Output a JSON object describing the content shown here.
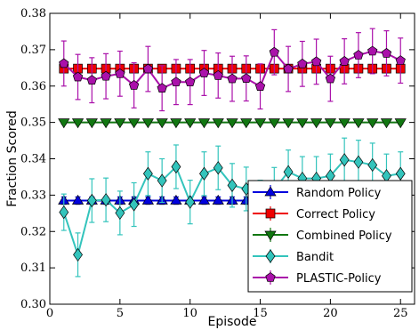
{
  "chart_data": {
    "type": "line",
    "xlabel": "Episode",
    "ylabel": "Fraction Scored",
    "xlim": [
      0,
      26
    ],
    "ylim": [
      0.3,
      0.38
    ],
    "xticks": [
      0,
      5,
      10,
      15,
      20,
      25
    ],
    "yticks": [
      0.3,
      0.31,
      0.32,
      0.33,
      0.34,
      0.35,
      0.36,
      0.37,
      0.38
    ],
    "ytick_labels": [
      "0.30",
      "0.31",
      "0.32",
      "0.33",
      "0.34",
      "0.35",
      "0.36",
      "0.37",
      "0.38"
    ],
    "grid": false,
    "legend_position": "lower-right",
    "x": [
      1,
      2,
      3,
      4,
      5,
      6,
      7,
      8,
      9,
      10,
      11,
      12,
      13,
      14,
      15,
      16,
      17,
      18,
      19,
      20,
      21,
      22,
      23,
      24,
      25
    ],
    "series": [
      {
        "name": "Random Policy",
        "color": "#0000dd",
        "marker": "triangle-up",
        "values": [
          0.3285,
          0.3285,
          0.3285,
          0.3285,
          0.3285,
          0.3285,
          0.3285,
          0.3285,
          0.3285,
          0.3285,
          0.3285,
          0.3285,
          0.3285,
          0.3285,
          0.3285,
          0.3285,
          0.3285,
          0.3285,
          0.3285,
          0.3285,
          0.3285,
          0.3285,
          0.3285,
          0.3285,
          0.3285
        ],
        "error": [
          0.001,
          0.001,
          0.001,
          0.001,
          0.001,
          0.001,
          0.001,
          0.001,
          0.001,
          0.001,
          0.001,
          0.001,
          0.001,
          0.001,
          0.001,
          0.001,
          0.001,
          0.001,
          0.001,
          0.001,
          0.001,
          0.001,
          0.001,
          0.001,
          0.001
        ]
      },
      {
        "name": "Correct Policy",
        "color": "#ee0000",
        "marker": "square",
        "values": [
          0.3648,
          0.3648,
          0.3648,
          0.3648,
          0.3648,
          0.3648,
          0.3648,
          0.3648,
          0.3648,
          0.3648,
          0.3648,
          0.3648,
          0.3648,
          0.3648,
          0.3648,
          0.3648,
          0.3648,
          0.3648,
          0.3648,
          0.3648,
          0.3648,
          0.3648,
          0.3648,
          0.3648,
          0.3648
        ],
        "error": [
          0.001,
          0.001,
          0.001,
          0.001,
          0.001,
          0.001,
          0.001,
          0.001,
          0.001,
          0.001,
          0.001,
          0.001,
          0.001,
          0.001,
          0.001,
          0.001,
          0.001,
          0.001,
          0.001,
          0.001,
          0.001,
          0.001,
          0.001,
          0.001,
          0.001
        ]
      },
      {
        "name": "Combined Policy",
        "color": "#117711",
        "marker": "triangle-down",
        "values": [
          0.35,
          0.35,
          0.35,
          0.35,
          0.35,
          0.35,
          0.35,
          0.35,
          0.35,
          0.35,
          0.35,
          0.35,
          0.35,
          0.35,
          0.35,
          0.35,
          0.35,
          0.35,
          0.35,
          0.35,
          0.35,
          0.35,
          0.35,
          0.35,
          0.35
        ],
        "error": [
          0.0005,
          0.0005,
          0.0005,
          0.0005,
          0.0005,
          0.0005,
          0.0005,
          0.0005,
          0.0005,
          0.0005,
          0.0005,
          0.0005,
          0.0005,
          0.0005,
          0.0005,
          0.0005,
          0.0005,
          0.0005,
          0.0005,
          0.0005,
          0.0005,
          0.0005,
          0.0005,
          0.0005,
          0.0005
        ]
      },
      {
        "name": "Bandit",
        "color": "#33c4bc",
        "marker": "diamond",
        "values": [
          0.3253,
          0.3136,
          0.3285,
          0.3287,
          0.3251,
          0.3274,
          0.3359,
          0.334,
          0.3378,
          0.3281,
          0.3359,
          0.3375,
          0.3327,
          0.3317,
          0.3281,
          0.3316,
          0.3364,
          0.3346,
          0.3346,
          0.3353,
          0.3397,
          0.3391,
          0.3383,
          0.3353,
          0.3359
        ],
        "error": [
          0.005,
          0.006,
          0.006,
          0.006,
          0.006,
          0.006,
          0.006,
          0.006,
          0.006,
          0.006,
          0.006,
          0.006,
          0.006,
          0.006,
          0.006,
          0.006,
          0.006,
          0.006,
          0.006,
          0.006,
          0.006,
          0.006,
          0.006,
          0.006,
          0.006
        ]
      },
      {
        "name": "PLASTIC-Policy",
        "color": "#aa11aa",
        "marker": "pentagon",
        "values": [
          0.3662,
          0.3625,
          0.3616,
          0.3627,
          0.3634,
          0.3602,
          0.3647,
          0.3594,
          0.3611,
          0.3611,
          0.3636,
          0.3629,
          0.362,
          0.3621,
          0.3599,
          0.3693,
          0.3647,
          0.3661,
          0.3667,
          0.362,
          0.3668,
          0.3685,
          0.3696,
          0.369,
          0.367
        ],
        "error": [
          0.0062,
          0.0062,
          0.0062,
          0.0062,
          0.0062,
          0.0062,
          0.0062,
          0.0062,
          0.0062,
          0.0062,
          0.0062,
          0.0062,
          0.0062,
          0.0062,
          0.0062,
          0.0062,
          0.0062,
          0.0062,
          0.0062,
          0.0062,
          0.0062,
          0.0062,
          0.0062,
          0.0062,
          0.0062
        ]
      }
    ]
  }
}
